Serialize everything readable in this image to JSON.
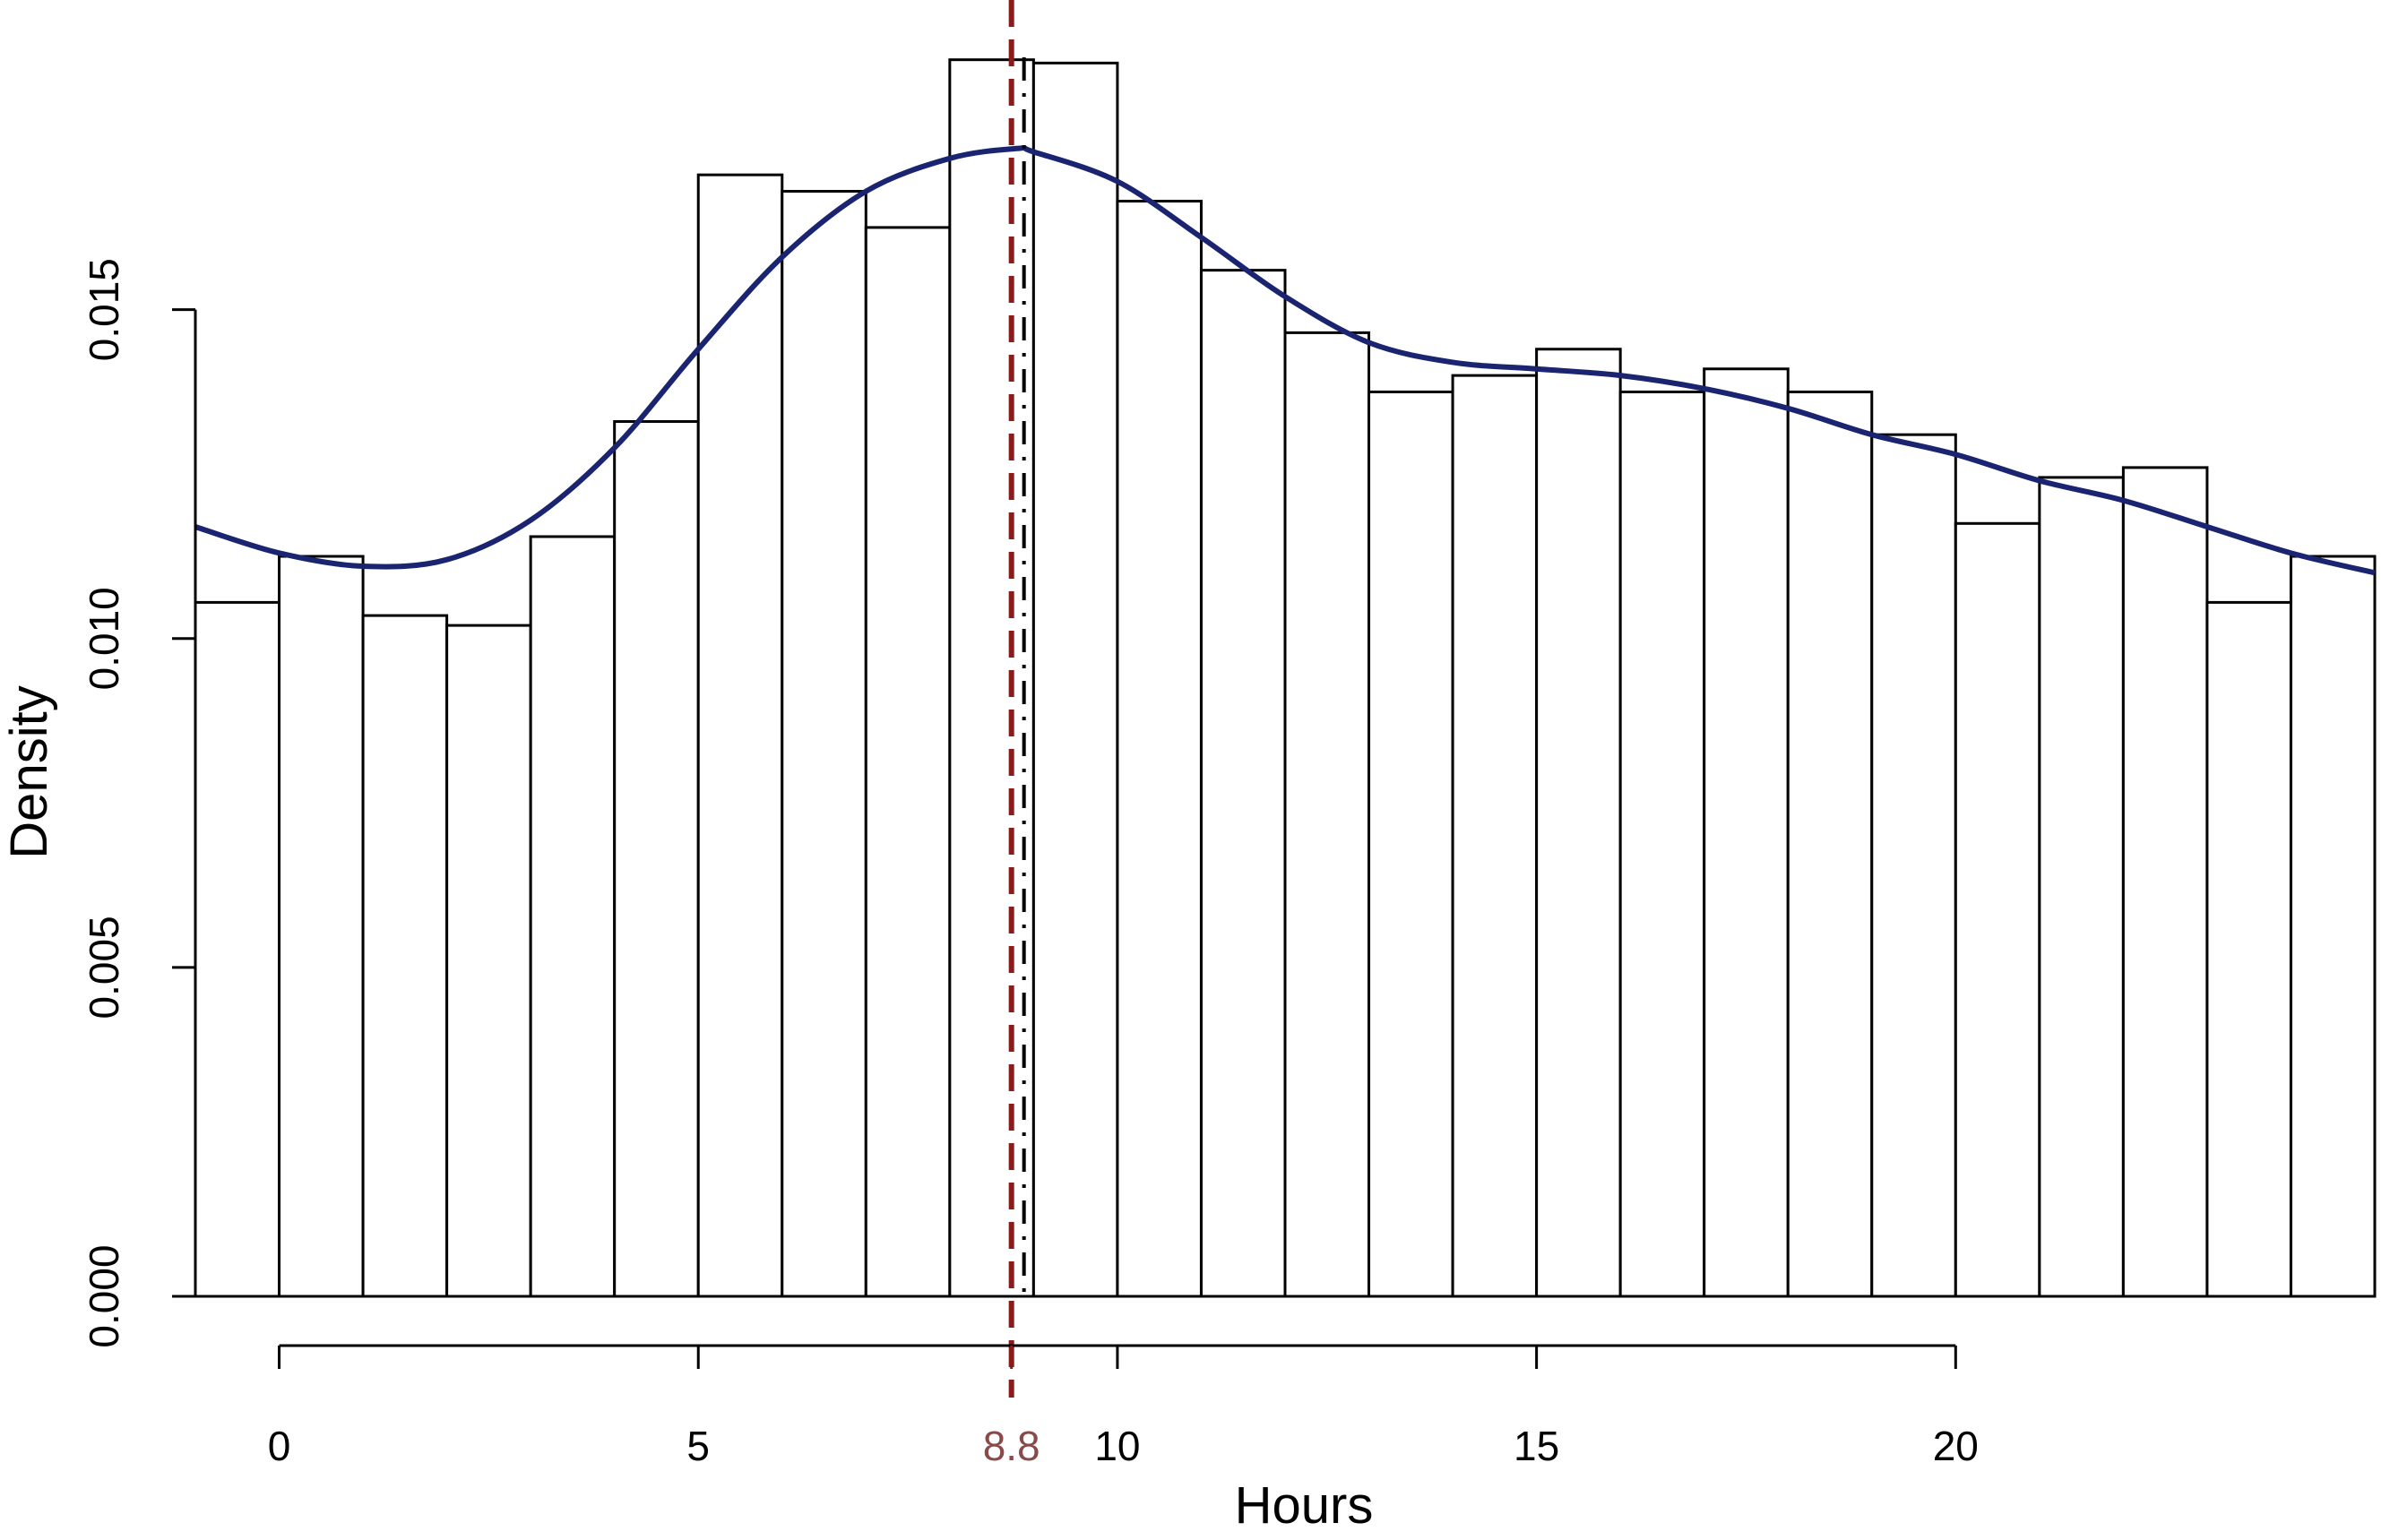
{
  "chart_data": {
    "type": "bar",
    "xlabel": "Hours",
    "ylabel": "Density",
    "xlim": [
      -1,
      25
    ],
    "ylim": [
      0,
      0.019
    ],
    "grid": false,
    "x_ticks": [
      {
        "value": 0,
        "label": "0"
      },
      {
        "value": 5,
        "label": "5"
      },
      {
        "value": 10,
        "label": "10"
      },
      {
        "value": 15,
        "label": "15"
      },
      {
        "value": 20,
        "label": "20"
      }
    ],
    "x_axis_range": [
      0,
      20
    ],
    "y_ticks": [
      {
        "value": 0,
        "label": "0.000"
      },
      {
        "value": 0.005,
        "label": "0.005"
      },
      {
        "value": 0.01,
        "label": "0.010"
      },
      {
        "value": 0.015,
        "label": "0.015"
      }
    ],
    "bins": [
      {
        "start": -1,
        "end": 0,
        "density": 0.01055
      },
      {
        "start": 0,
        "end": 1,
        "density": 0.01125
      },
      {
        "start": 1,
        "end": 2,
        "density": 0.01035
      },
      {
        "start": 2,
        "end": 3,
        "density": 0.0102
      },
      {
        "start": 3,
        "end": 4,
        "density": 0.01155
      },
      {
        "start": 4,
        "end": 5,
        "density": 0.0133
      },
      {
        "start": 5,
        "end": 6,
        "density": 0.01705
      },
      {
        "start": 6,
        "end": 7,
        "density": 0.0168
      },
      {
        "start": 7,
        "end": 8,
        "density": 0.01625
      },
      {
        "start": 8,
        "end": 9,
        "density": 0.0188
      },
      {
        "start": 9,
        "end": 10,
        "density": 0.01875
      },
      {
        "start": 10,
        "end": 11,
        "density": 0.01665
      },
      {
        "start": 11,
        "end": 12,
        "density": 0.0156
      },
      {
        "start": 12,
        "end": 13,
        "density": 0.01465
      },
      {
        "start": 13,
        "end": 14,
        "density": 0.01375
      },
      {
        "start": 14,
        "end": 15,
        "density": 0.014
      },
      {
        "start": 15,
        "end": 16,
        "density": 0.0144
      },
      {
        "start": 16,
        "end": 17,
        "density": 0.01375
      },
      {
        "start": 17,
        "end": 18,
        "density": 0.0141
      },
      {
        "start": 18,
        "end": 19,
        "density": 0.01375
      },
      {
        "start": 19,
        "end": 20,
        "density": 0.0131
      },
      {
        "start": 20,
        "end": 21,
        "density": 0.01175
      },
      {
        "start": 21,
        "end": 22,
        "density": 0.01245
      },
      {
        "start": 22,
        "end": 23,
        "density": 0.0126
      },
      {
        "start": 23,
        "end": 24,
        "density": 0.01055
      },
      {
        "start": 24,
        "end": 25,
        "density": 0.01125
      }
    ],
    "density_curve": {
      "color": "#1a2470",
      "x": [
        -1,
        0,
        1,
        2,
        3,
        4,
        5,
        6,
        7,
        8,
        8.8,
        9,
        10,
        11,
        12,
        13,
        14,
        15,
        16,
        17,
        18,
        19,
        20,
        21,
        22,
        23,
        24,
        25
      ],
      "y": [
        0.0117,
        0.0113,
        0.0111,
        0.0112,
        0.0118,
        0.0129,
        0.0144,
        0.0158,
        0.0168,
        0.0173,
        0.01745,
        0.0174,
        0.01695,
        0.0161,
        0.0152,
        0.0145,
        0.0142,
        0.0141,
        0.014,
        0.0138,
        0.0135,
        0.0131,
        0.0128,
        0.0124,
        0.0121,
        0.0117,
        0.0113,
        0.011
      ]
    },
    "marker": {
      "value": 8.8,
      "label": "8.8",
      "color": "#8b1a1a",
      "label_color": "#8a4a4a"
    },
    "bar_outline_color": "#000000",
    "bar_fill_color": "#ffffff"
  }
}
